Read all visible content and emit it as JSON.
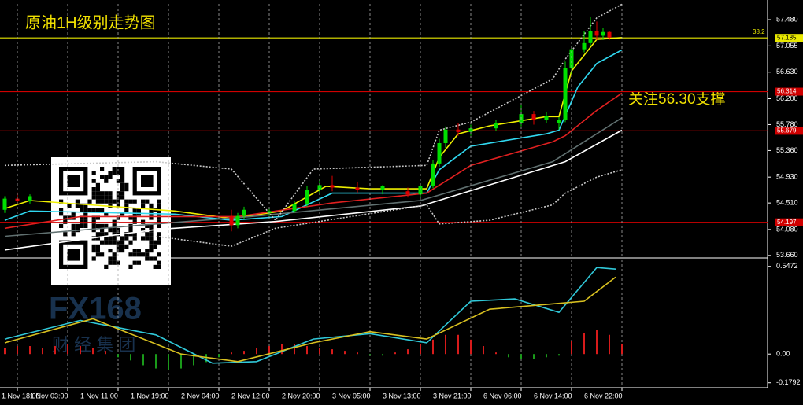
{
  "chart_data": [
    {
      "type": "candlestick",
      "title": "原油1H级别走势图",
      "annotation": "关注56.30支撑",
      "fib_label": "38.2",
      "watermark": [
        "FX168",
        "财 经 集 团"
      ],
      "xlim": [
        -2.75,
        119.125
      ],
      "ylim": [
        53.62,
        57.735
      ],
      "yticks": [
        {
          "value": 57.48,
          "label": "57.480"
        },
        57.055,
        {
          "value": 56.63,
          "label": "56.630"
        },
        {
          "value": 56.2,
          "label": "56.200"
        },
        {
          "value": 55.78,
          "label": "55.780"
        },
        {
          "value": 55.36,
          "label": "55.360"
        },
        {
          "value": 54.93,
          "label": "54.930"
        },
        {
          "value": 54.51,
          "label": "54.510"
        },
        {
          "value": 54.08,
          "label": "54.080"
        },
        {
          "value": 53.66,
          "label": "53.660"
        }
      ],
      "up_color": "#00e000",
      "down_color": "#e00000",
      "candles": {
        "x": [
          -2,
          0,
          2,
          34,
          35,
          36,
          40,
          44,
          46,
          48,
          50,
          54,
          58,
          62,
          64,
          66,
          67,
          68,
          70,
          72,
          76,
          80,
          82,
          84,
          86,
          87,
          88,
          90,
          91,
          92,
          93,
          94
        ],
        "open": [
          54.4,
          54.58,
          54.55,
          54.3,
          54.15,
          54.3,
          54.35,
          54.38,
          54.5,
          54.72,
          54.8,
          54.76,
          54.72,
          54.7,
          54.65,
          54.78,
          55.15,
          55.48,
          55.7,
          55.66,
          55.72,
          55.8,
          55.95,
          55.85,
          55.8,
          55.85,
          56.7,
          57.0,
          57.1,
          57.3,
          57.22,
          57.28
        ],
        "high": [
          54.62,
          54.68,
          54.65,
          54.4,
          54.35,
          54.45,
          54.42,
          54.55,
          54.78,
          54.9,
          54.95,
          54.85,
          54.8,
          54.76,
          54.82,
          55.2,
          55.55,
          55.75,
          55.8,
          55.78,
          55.85,
          56.1,
          56.0,
          55.98,
          55.9,
          56.8,
          57.05,
          57.3,
          57.52,
          57.45,
          57.35,
          57.3
        ],
        "low": [
          54.35,
          54.5,
          54.5,
          54.05,
          54.1,
          54.25,
          54.3,
          54.35,
          54.45,
          54.65,
          54.7,
          54.68,
          54.65,
          54.6,
          54.6,
          54.75,
          55.1,
          55.4,
          55.6,
          55.6,
          55.68,
          55.75,
          55.78,
          55.8,
          55.7,
          55.82,
          56.6,
          56.95,
          57.05,
          57.15,
          57.15,
          57.15
        ],
        "close": [
          54.58,
          54.55,
          54.62,
          54.15,
          54.3,
          54.4,
          54.38,
          54.5,
          54.72,
          54.8,
          54.76,
          54.72,
          54.78,
          54.65,
          54.78,
          55.15,
          55.48,
          55.7,
          55.66,
          55.72,
          55.8,
          55.95,
          55.85,
          55.92,
          55.85,
          56.7,
          57.0,
          57.1,
          57.3,
          57.22,
          57.28,
          57.19
        ]
      },
      "series": [
        {
          "color": "#f0f000",
          "style": "solid",
          "x": [
            -2,
            2,
            25,
            34,
            42,
            49,
            56,
            65,
            67,
            70,
            75,
            84,
            86,
            88,
            92,
            96
          ],
          "values": [
            54.42,
            54.55,
            54.38,
            54.26,
            54.38,
            54.78,
            54.74,
            54.74,
            55.25,
            55.63,
            55.76,
            55.91,
            55.91,
            56.65,
            57.16,
            57.19
          ]
        },
        {
          "color": "#30d8f0",
          "style": "solid",
          "x": [
            -2,
            2,
            25,
            34,
            42,
            50,
            65,
            67,
            72,
            84,
            86,
            89,
            92,
            96
          ],
          "values": [
            54.23,
            54.38,
            54.33,
            54.23,
            54.29,
            54.67,
            54.67,
            55.05,
            55.43,
            55.63,
            55.69,
            56.39,
            56.77,
            56.99
          ]
        },
        {
          "color": "#e02020",
          "style": "solid",
          "x": [
            -2,
            10,
            35,
            50,
            65,
            72,
            85,
            87,
            92,
            96
          ],
          "values": [
            54.1,
            54.29,
            54.29,
            54.51,
            54.67,
            55.12,
            55.5,
            55.6,
            56.01,
            56.29
          ]
        },
        {
          "color": "#607070",
          "style": "solid",
          "x": [
            -2,
            22,
            37,
            64,
            85,
            96
          ],
          "values": [
            53.97,
            54.17,
            54.29,
            54.55,
            55.18,
            55.89
          ]
        },
        {
          "color": "#ffffff",
          "style": "solid",
          "x": [
            -2,
            22,
            41,
            64,
            87,
            96
          ],
          "values": [
            53.75,
            54.08,
            54.21,
            54.46,
            55.18,
            55.69
          ]
        },
        {
          "color": "#c8c8c8",
          "style": "dashed",
          "x": [
            -2,
            22,
            34,
            41,
            47,
            65,
            67,
            72,
            85,
            87,
            92,
            96
          ],
          "values": [
            55.12,
            55.18,
            55.06,
            54.23,
            55.06,
            55.12,
            55.69,
            55.82,
            56.52,
            56.84,
            57.51,
            57.73
          ]
        },
        {
          "color": "#c8c8c8",
          "style": "dashed",
          "x": [
            22,
            34,
            41,
            65,
            67,
            75,
            85,
            87,
            92,
            96
          ],
          "values": [
            53.97,
            53.81,
            54.1,
            54.48,
            54.17,
            54.23,
            54.48,
            54.67,
            54.93,
            55.05
          ]
        }
      ],
      "levels": [
        {
          "value": 57.185,
          "color": "#e8e800",
          "label_color": "#000000"
        },
        {
          "value": 56.314,
          "color": "#d00000",
          "label_color": "#ffffff"
        },
        {
          "value": 55.679,
          "color": "#d00000",
          "label_color": "#ffffff"
        },
        {
          "value": 54.197,
          "color": "#d00000",
          "label_color": "#ffffff"
        }
      ]
    },
    {
      "type": "macd",
      "xlim": [
        -2.75,
        119.125
      ],
      "ylim": [
        -0.21,
        0.59
      ],
      "yticks": [
        0.5472,
        {
          "value": 0,
          "label": "0.00"
        },
        -0.1792
      ],
      "xticks": [
        {
          "value": 0,
          "label": "1 Nov 18:00"
        },
        {
          "value": 8,
          "label": "1 Nov 03:00"
        },
        {
          "value": 16,
          "label": "1 Nov 11:00"
        },
        {
          "value": 24,
          "label": "1 Nov 19:00"
        },
        {
          "value": 32,
          "label": "2 Nov 04:00"
        },
        {
          "value": 40,
          "label": "2 Nov 12:00"
        },
        {
          "value": 48,
          "label": "2 Nov 20:00"
        },
        {
          "value": 56,
          "label": "3 Nov 05:00"
        },
        {
          "value": 64,
          "label": "3 Nov 13:00"
        },
        {
          "value": 72,
          "label": "3 Nov 21:00"
        },
        {
          "value": 80,
          "label": "6 Nov 06:00"
        },
        {
          "value": 88,
          "label": "6 Nov 14:00"
        },
        {
          "value": 96,
          "label": "6 Nov 22:00"
        }
      ],
      "histogram": {
        "up_color": "#d81b1b",
        "down_color": "#1a9a1a",
        "x": [
          -2,
          0,
          2,
          4,
          6,
          8,
          10,
          12,
          14,
          16,
          18,
          20,
          22,
          24,
          26,
          28,
          30,
          32,
          34,
          36,
          38,
          40,
          42,
          44,
          46,
          48,
          50,
          52,
          54,
          56,
          58,
          60,
          62,
          64,
          66,
          68,
          70,
          72,
          74,
          76,
          78,
          80,
          82,
          84,
          86,
          88,
          90,
          92,
          94,
          96
        ],
        "values": [
          0.04,
          0.05,
          0.05,
          0.04,
          0.05,
          0.06,
          0.05,
          0.04,
          0.02,
          -0.02,
          -0.04,
          -0.07,
          -0.09,
          -0.1,
          -0.09,
          -0.07,
          -0.05,
          -0.02,
          0.01,
          0.02,
          0.04,
          0.05,
          0.06,
          0.06,
          0.05,
          0.04,
          0.03,
          0.02,
          0.01,
          -0.01,
          -0.01,
          0.01,
          0.03,
          0.06,
          0.09,
          0.12,
          0.12,
          0.09,
          0.05,
          0.01,
          -0.02,
          -0.03,
          -0.03,
          -0.02,
          -0.01,
          0.08,
          0.13,
          0.15,
          0.12,
          0.06
        ]
      },
      "series": [
        {
          "color": "#30c8d8",
          "style": "solid",
          "x": [
            -2,
            10,
            22,
            31,
            38,
            47,
            56,
            65,
            72,
            79,
            86,
            92,
            95
          ],
          "values": [
            0.094,
            0.21,
            0.12,
            -0.057,
            -0.047,
            0.094,
            0.127,
            0.07,
            0.33,
            0.344,
            0.26,
            0.54,
            0.53
          ]
        },
        {
          "color": "#d8c020",
          "style": "solid",
          "x": [
            -2,
            12,
            26,
            35,
            47,
            56,
            65,
            75,
            84,
            90,
            95
          ],
          "values": [
            0.07,
            0.22,
            0,
            -0.047,
            0.07,
            0.14,
            0.094,
            0.28,
            0.31,
            0.33,
            0.48
          ]
        }
      ]
    }
  ]
}
